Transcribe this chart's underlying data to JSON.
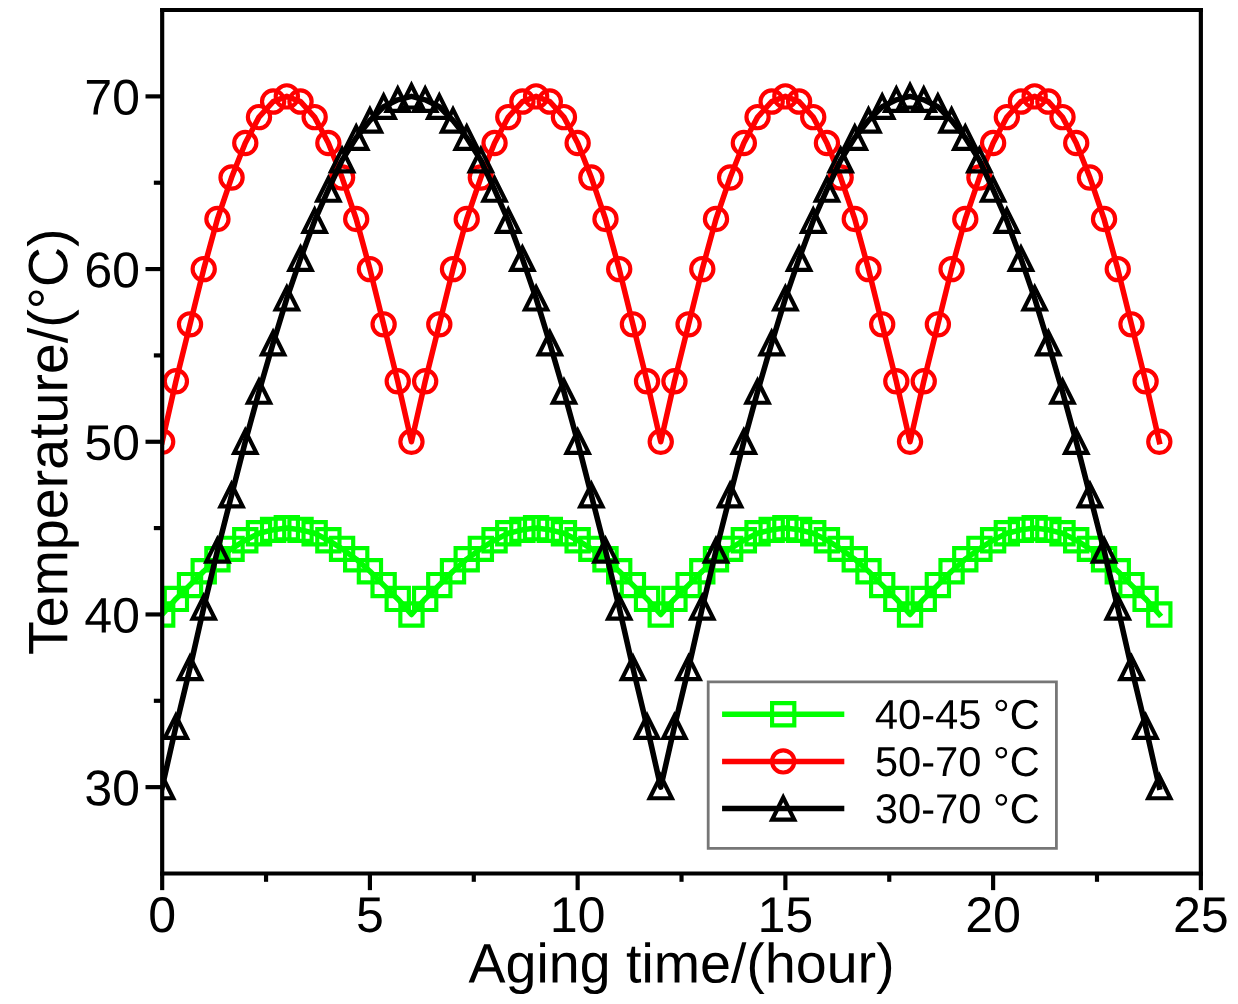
{
  "chart_data": {
    "type": "line",
    "xlabel": "Aging time/(hour)",
    "ylabel": "Temperature/(°C)",
    "x": [
      0,
      0.33,
      0.67,
      1,
      1.33,
      1.67,
      2,
      2.33,
      2.67,
      3,
      3.33,
      3.67,
      4,
      4.33,
      4.67,
      5,
      5.33,
      5.67,
      6,
      6.33,
      6.67,
      7,
      7.33,
      7.67,
      8,
      8.33,
      8.67,
      9,
      9.33,
      9.67,
      10,
      10.33,
      10.67,
      11,
      11.33,
      11.67,
      12,
      12.33,
      12.67,
      13,
      13.33,
      13.67,
      14,
      14.33,
      14.67,
      15,
      15.33,
      15.67,
      16,
      16.33,
      16.67,
      17,
      17.33,
      17.67,
      18,
      18.33,
      18.67,
      19,
      19.33,
      19.67,
      20,
      20.33,
      20.67,
      21,
      21.33,
      21.67,
      22,
      22.33,
      22.67,
      23,
      23.33,
      23.67,
      24
    ],
    "series": [
      {
        "name": "40-45 °C",
        "color": "#00ff00",
        "marker": "square",
        "values": [
          40,
          40.9,
          41.7,
          42.5,
          43.2,
          43.8,
          44.3,
          44.7,
          44.9,
          45,
          44.9,
          44.7,
          44.3,
          43.8,
          43.2,
          42.5,
          41.7,
          40.9,
          40,
          40.9,
          41.7,
          42.5,
          43.2,
          43.8,
          44.3,
          44.7,
          44.9,
          45,
          44.9,
          44.7,
          44.3,
          43.8,
          43.2,
          42.5,
          41.7,
          40.9,
          40,
          40.9,
          41.7,
          42.5,
          43.2,
          43.8,
          44.3,
          44.7,
          44.9,
          45,
          44.9,
          44.7,
          44.3,
          43.8,
          43.2,
          42.5,
          41.7,
          40.9,
          40,
          40.9,
          41.7,
          42.5,
          43.2,
          43.8,
          44.3,
          44.7,
          44.9,
          45,
          44.9,
          44.7,
          44.3,
          43.8,
          43.2,
          42.5,
          41.7,
          40.9,
          40
        ]
      },
      {
        "name": "50-70 °C",
        "color": "#ff0000",
        "marker": "circle",
        "values": [
          50,
          53.5,
          56.8,
          60,
          62.9,
          65.3,
          67.3,
          68.8,
          69.7,
          70,
          69.7,
          68.8,
          67.3,
          65.3,
          62.9,
          60,
          56.8,
          53.5,
          50,
          53.5,
          56.8,
          60,
          62.9,
          65.3,
          67.3,
          68.8,
          69.7,
          70,
          69.7,
          68.8,
          67.3,
          65.3,
          62.9,
          60,
          56.8,
          53.5,
          50,
          53.5,
          56.8,
          60,
          62.9,
          65.3,
          67.3,
          68.8,
          69.7,
          70,
          69.7,
          68.8,
          67.3,
          65.3,
          62.9,
          60,
          56.8,
          53.5,
          50,
          53.5,
          56.8,
          60,
          62.9,
          65.3,
          67.3,
          68.8,
          69.7,
          70,
          69.7,
          68.8,
          67.3,
          65.3,
          62.9,
          60,
          56.8,
          53.5,
          50
        ]
      },
      {
        "name": "30-70 °C",
        "color": "#000000",
        "marker": "triangle",
        "values": [
          30,
          33.5,
          36.9,
          40.4,
          43.7,
          46.9,
          50,
          52.9,
          55.7,
          58.3,
          60.6,
          62.8,
          64.6,
          66.3,
          67.6,
          68.6,
          69.4,
          69.8,
          70,
          69.8,
          69.4,
          68.6,
          67.6,
          66.3,
          64.6,
          62.8,
          60.6,
          58.3,
          55.7,
          52.9,
          50,
          46.9,
          43.7,
          40.4,
          36.9,
          33.5,
          30,
          33.5,
          36.9,
          40.4,
          43.7,
          46.9,
          50,
          52.9,
          55.7,
          58.3,
          60.6,
          62.8,
          64.6,
          66.3,
          67.6,
          68.6,
          69.4,
          69.8,
          70,
          69.8,
          69.4,
          68.6,
          67.6,
          66.3,
          64.6,
          62.8,
          60.6,
          58.3,
          55.7,
          52.9,
          50,
          46.9,
          43.7,
          40.4,
          36.9,
          33.5,
          30
        ]
      }
    ],
    "xlim": [
      0,
      25
    ],
    "xticks": [
      0,
      5,
      10,
      15,
      20,
      25
    ],
    "ylim": [
      25,
      75
    ],
    "yticks": [
      30,
      40,
      50,
      60,
      70
    ],
    "grid": false,
    "legend": "bottom right",
    "line_style": "solid"
  }
}
